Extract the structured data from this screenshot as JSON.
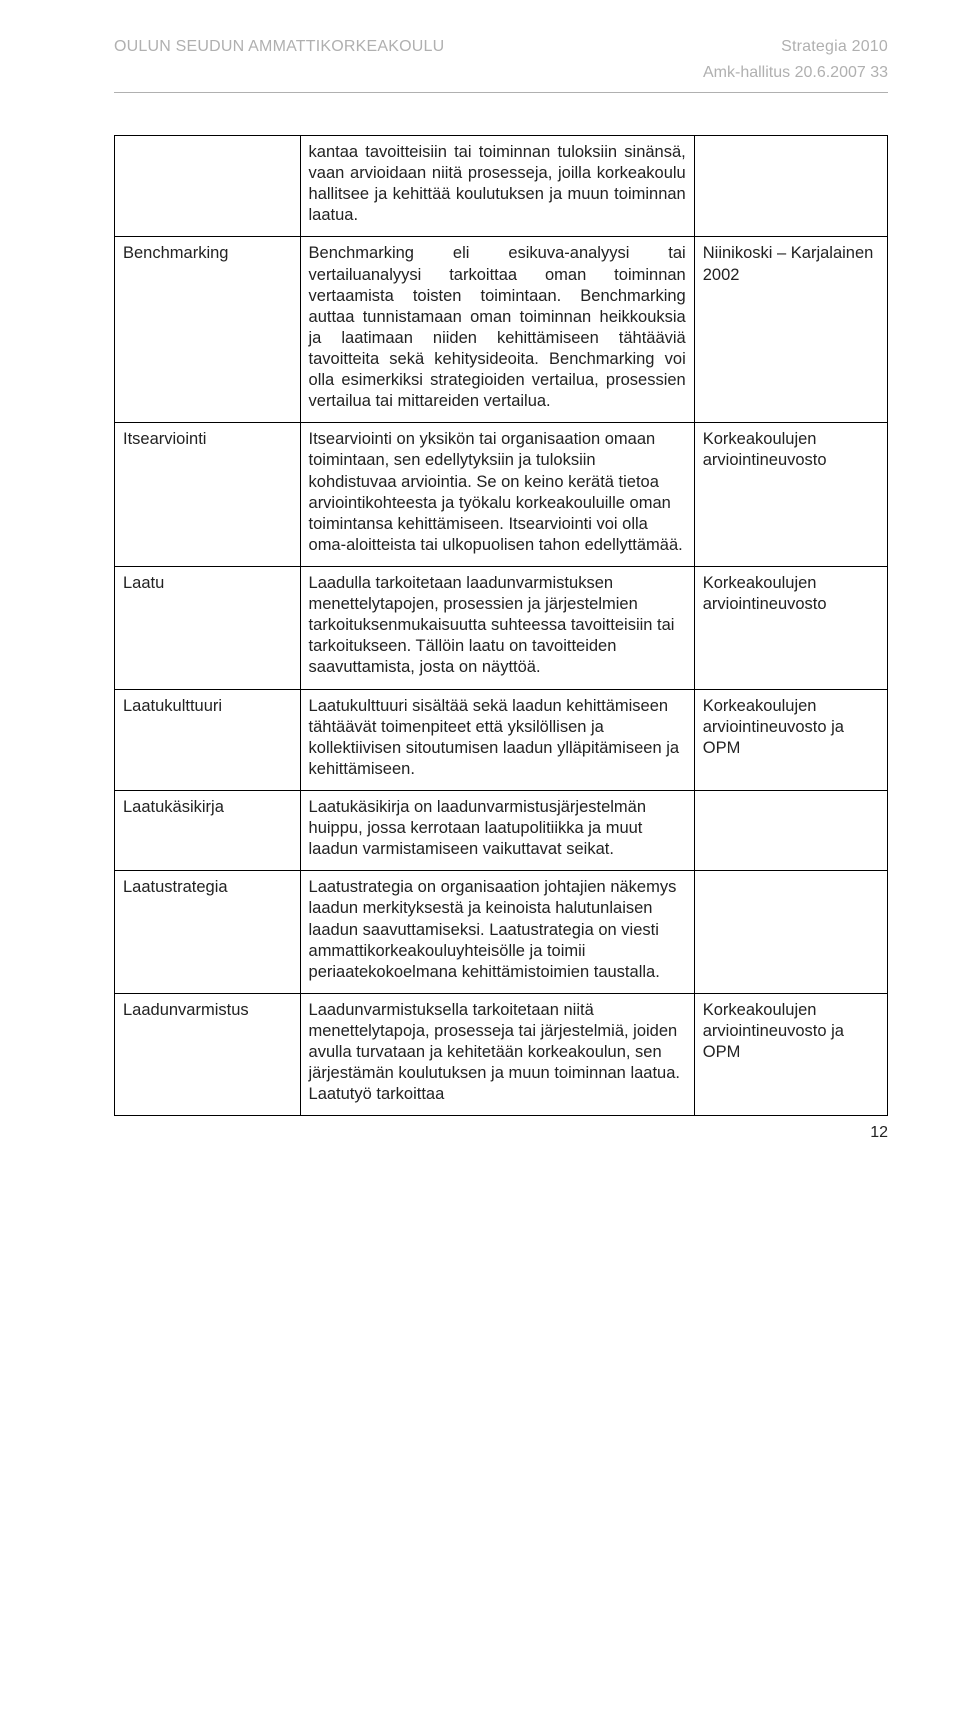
{
  "header": {
    "left": "OULUN SEUDUN AMMATTIKORKEAKOULU",
    "right": "Strategia 2010",
    "sub": "Amk-hallitus 20.6.2007 33"
  },
  "rows": [
    {
      "term": "",
      "def": "kantaa tavoitteisiin tai toiminnan tuloksiin sinänsä, vaan arvioidaan niitä prosesseja, joilla korkeakoulu hallitsee ja kehittää koulutuksen ja muun toiminnan laatua.",
      "source": "",
      "justify": true
    },
    {
      "term": "Benchmarking",
      "def": "Benchmarking eli esikuva-analyysi tai vertailuanalyysi tarkoittaa oman toiminnan vertaamista toisten toimintaan. Benchmarking auttaa tunnistamaan oman toiminnan heikkouksia ja laatimaan niiden kehittämiseen tähtääviä tavoitteita sekä kehitysideoita. Benchmarking voi olla esimerkiksi strategioiden vertailua, prosessien vertailua tai mittareiden vertailua.",
      "source": "Niinikoski – Karjalainen 2002",
      "justify": true
    },
    {
      "term": "Itsearviointi",
      "def": "Itsearviointi on yksikön tai organisaation omaan toimintaan, sen edellytyksiin ja tuloksiin kohdistuvaa arviointia. Se on keino kerätä tietoa arviointikohteesta ja työkalu korkeakouluille oman toimintansa kehittämiseen. Itsearviointi voi olla oma-aloitteista tai ulkopuolisen tahon edellyttämää.",
      "source": "Korkeakoulujen arviointineuvosto",
      "justify": false
    },
    {
      "term": "Laatu",
      "def": "Laadulla tarkoitetaan laadunvarmistuksen menettelytapojen, prosessien ja järjestelmien tarkoituksenmukaisuutta suhteessa tavoitteisiin tai tarkoitukseen. Tällöin laatu on tavoitteiden saavuttamista, josta on näyttöä.",
      "source": "Korkeakoulujen arviointineuvosto",
      "justify": false
    },
    {
      "term": "Laatukulttuuri",
      "def": "Laatukulttuuri sisältää sekä laadun kehittämiseen tähtäävät toimenpiteet että yksilöllisen ja kollektiivisen sitoutumisen laadun ylläpitämiseen ja kehittämiseen.",
      "source": "Korkeakoulujen arviointineuvosto ja OPM",
      "justify": false
    },
    {
      "term": "Laatukäsikirja",
      "def": "Laatukäsikirja on laadunvarmistusjärjestelmän huippu, jossa kerrotaan laatupolitiikka ja muut laadun varmistamiseen vaikuttavat seikat.",
      "source": "",
      "justify": false
    },
    {
      "term": "Laatustrategia",
      "def": "Laatustrategia on organisaation johtajien näkemys laadun merkityksestä ja keinoista halutunlaisen laadun saavuttamiseksi. Laatustrategia on viesti ammattikorkeakouluyhteisölle ja toimii periaatekokoelmana kehittämistoimien taustalla.",
      "source": "",
      "justify": false
    },
    {
      "term": "Laadunvarmistus",
      "def": "Laadunvarmistuksella tarkoitetaan niitä menettelytapoja, prosesseja tai järjestelmiä, joiden avulla turvataan ja kehitetään korkeakoulun, sen järjestämän koulutuksen ja muun toiminnan laatua. Laatutyö tarkoittaa",
      "source": "Korkeakoulujen arviointineuvosto ja OPM",
      "justify": false
    }
  ],
  "pageNumber": "12"
}
